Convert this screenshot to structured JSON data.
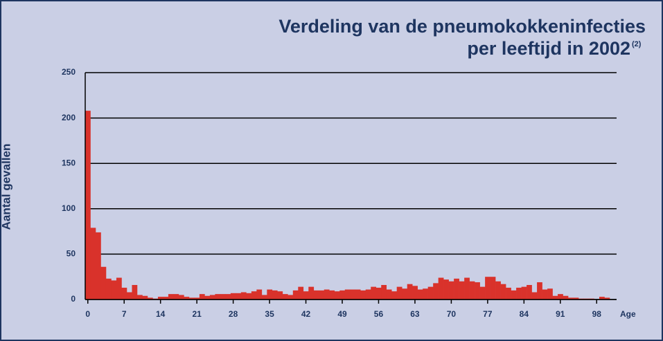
{
  "chart_data": {
    "type": "bar",
    "title": [
      "Verdeling van de pneumokokkeninfecties",
      "per leeftijd in 2002"
    ],
    "title_note": "(2)",
    "y_label": "Aantal gevallen",
    "x_label": "Age",
    "categories": [
      "0",
      null,
      null,
      null,
      null,
      null,
      null,
      "7",
      null,
      null,
      null,
      null,
      null,
      null,
      "14",
      null,
      null,
      null,
      null,
      null,
      null,
      "21",
      null,
      null,
      null,
      null,
      null,
      null,
      "28",
      null,
      null,
      null,
      null,
      null,
      null,
      "35",
      null,
      null,
      null,
      null,
      null,
      null,
      "42",
      null,
      null,
      null,
      null,
      null,
      null,
      "49",
      null,
      null,
      null,
      null,
      null,
      null,
      "56",
      null,
      null,
      null,
      null,
      null,
      null,
      "63",
      null,
      null,
      null,
      null,
      null,
      null,
      "70",
      null,
      null,
      null,
      null,
      null,
      null,
      "77",
      null,
      null,
      null,
      null,
      null,
      null,
      "84",
      null,
      null,
      null,
      null,
      null,
      null,
      "91",
      null,
      null,
      null,
      null,
      null,
      null,
      "98",
      null,
      null
    ],
    "values": [
      208,
      79,
      74,
      36,
      23,
      21,
      24,
      13,
      8,
      16,
      5,
      4,
      2,
      1,
      3,
      3,
      6,
      6,
      5,
      3,
      2,
      2,
      6,
      4,
      5,
      6,
      6,
      6,
      7,
      7,
      8,
      7,
      9,
      11,
      5,
      11,
      10,
      9,
      6,
      5,
      10,
      14,
      9,
      14,
      10,
      10,
      11,
      10,
      9,
      10,
      11,
      11,
      11,
      10,
      11,
      14,
      13,
      16,
      11,
      9,
      14,
      12,
      17,
      15,
      11,
      12,
      14,
      18,
      24,
      22,
      20,
      23,
      20,
      24,
      20,
      19,
      14,
      25,
      25,
      20,
      17,
      13,
      10,
      13,
      14,
      16,
      8,
      19,
      11,
      12,
      4,
      6,
      4,
      2,
      2,
      1,
      1,
      1,
      0,
      3,
      2
    ],
    "color": "#d9322b",
    "ylim": [
      0,
      250
    ],
    "yticks": [
      0,
      50,
      100,
      150,
      200,
      250
    ],
    "grid": true
  }
}
